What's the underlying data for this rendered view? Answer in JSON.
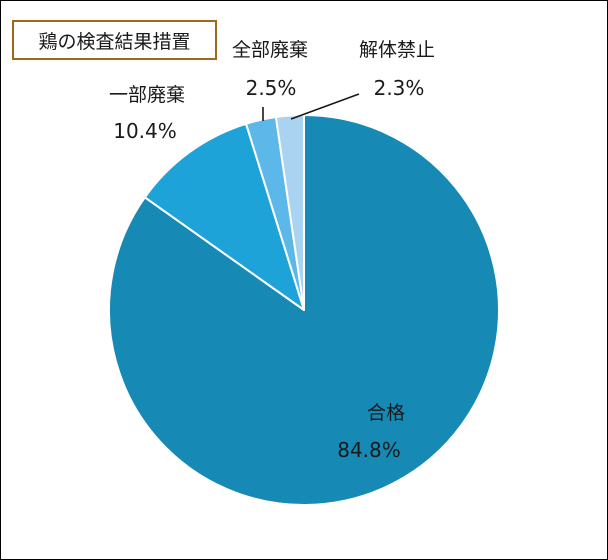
{
  "chart_data": {
    "type": "pie",
    "title": "鶏の検査結果措置",
    "start_angle": "12 o'clock",
    "direction": "clockwise",
    "slices": [
      {
        "name": "合格",
        "value": 84.8,
        "label": "84.8%",
        "color": "#1689b5"
      },
      {
        "name": "一部廃棄",
        "value": 10.4,
        "label": "10.4%",
        "color": "#1ea3d8"
      },
      {
        "name": "全部廃棄",
        "value": 2.5,
        "label": "2.5%",
        "color": "#5db8ea"
      },
      {
        "name": "解体禁止",
        "value": 2.3,
        "label": "2.3%",
        "color": "#a9d3f0"
      }
    ]
  }
}
